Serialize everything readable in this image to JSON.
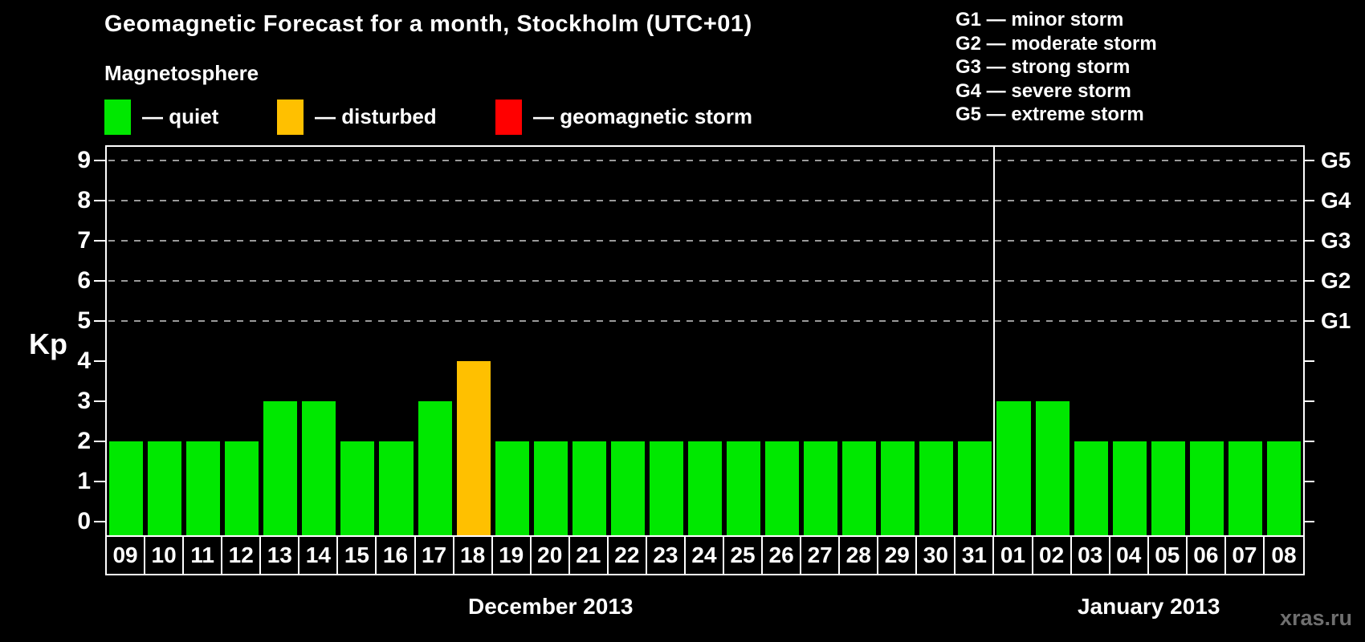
{
  "title": "Geomagnetic Forecast for a month, Stockholm (UTC+01)",
  "legend": {
    "heading": "Magnetosphere",
    "items": [
      {
        "name": "quiet",
        "label": "— quiet",
        "color": "#00e800"
      },
      {
        "name": "disturbed",
        "label": "— disturbed",
        "color": "#ffc000"
      },
      {
        "name": "storm",
        "label": "— geomagnetic storm",
        "color": "#ff0000"
      }
    ]
  },
  "g_scale_legend": [
    "G1 — minor storm",
    "G2 — moderate storm",
    "G3 — strong storm",
    "G4 — severe storm",
    "G5 — extreme storm"
  ],
  "watermark": "xras.ru",
  "chart_data": {
    "type": "bar",
    "ylabel": "Kp",
    "ylim": [
      0,
      9
    ],
    "yticks": [
      0,
      1,
      2,
      3,
      4,
      5,
      6,
      7,
      8,
      9
    ],
    "gridlines_at_kp": [
      5,
      6,
      7,
      8,
      9
    ],
    "grid": "dashed-horizontal",
    "legend_position": "top",
    "right_axis": [
      {
        "kp": 5,
        "label": "G1"
      },
      {
        "kp": 6,
        "label": "G2"
      },
      {
        "kp": 7,
        "label": "G3"
      },
      {
        "kp": 8,
        "label": "G4"
      },
      {
        "kp": 9,
        "label": "G5"
      }
    ],
    "color_rule": {
      "quiet_max_kp": 3,
      "disturbed_max_kp": 4
    },
    "months": [
      {
        "label": "December 2013",
        "days": [
          "09",
          "10",
          "11",
          "12",
          "13",
          "14",
          "15",
          "16",
          "17",
          "18",
          "19",
          "20",
          "21",
          "22",
          "23",
          "24",
          "25",
          "26",
          "27",
          "28",
          "29",
          "30",
          "31"
        ],
        "kp_values": [
          2,
          2,
          2,
          2,
          3,
          3,
          2,
          2,
          3,
          4,
          2,
          2,
          2,
          2,
          2,
          2,
          2,
          2,
          2,
          2,
          2,
          2,
          2
        ]
      },
      {
        "label": "January 2013",
        "days": [
          "01",
          "02",
          "03",
          "04",
          "05",
          "06",
          "07",
          "08"
        ],
        "kp_values": [
          3,
          3,
          2,
          2,
          2,
          2,
          2,
          2
        ]
      }
    ]
  }
}
